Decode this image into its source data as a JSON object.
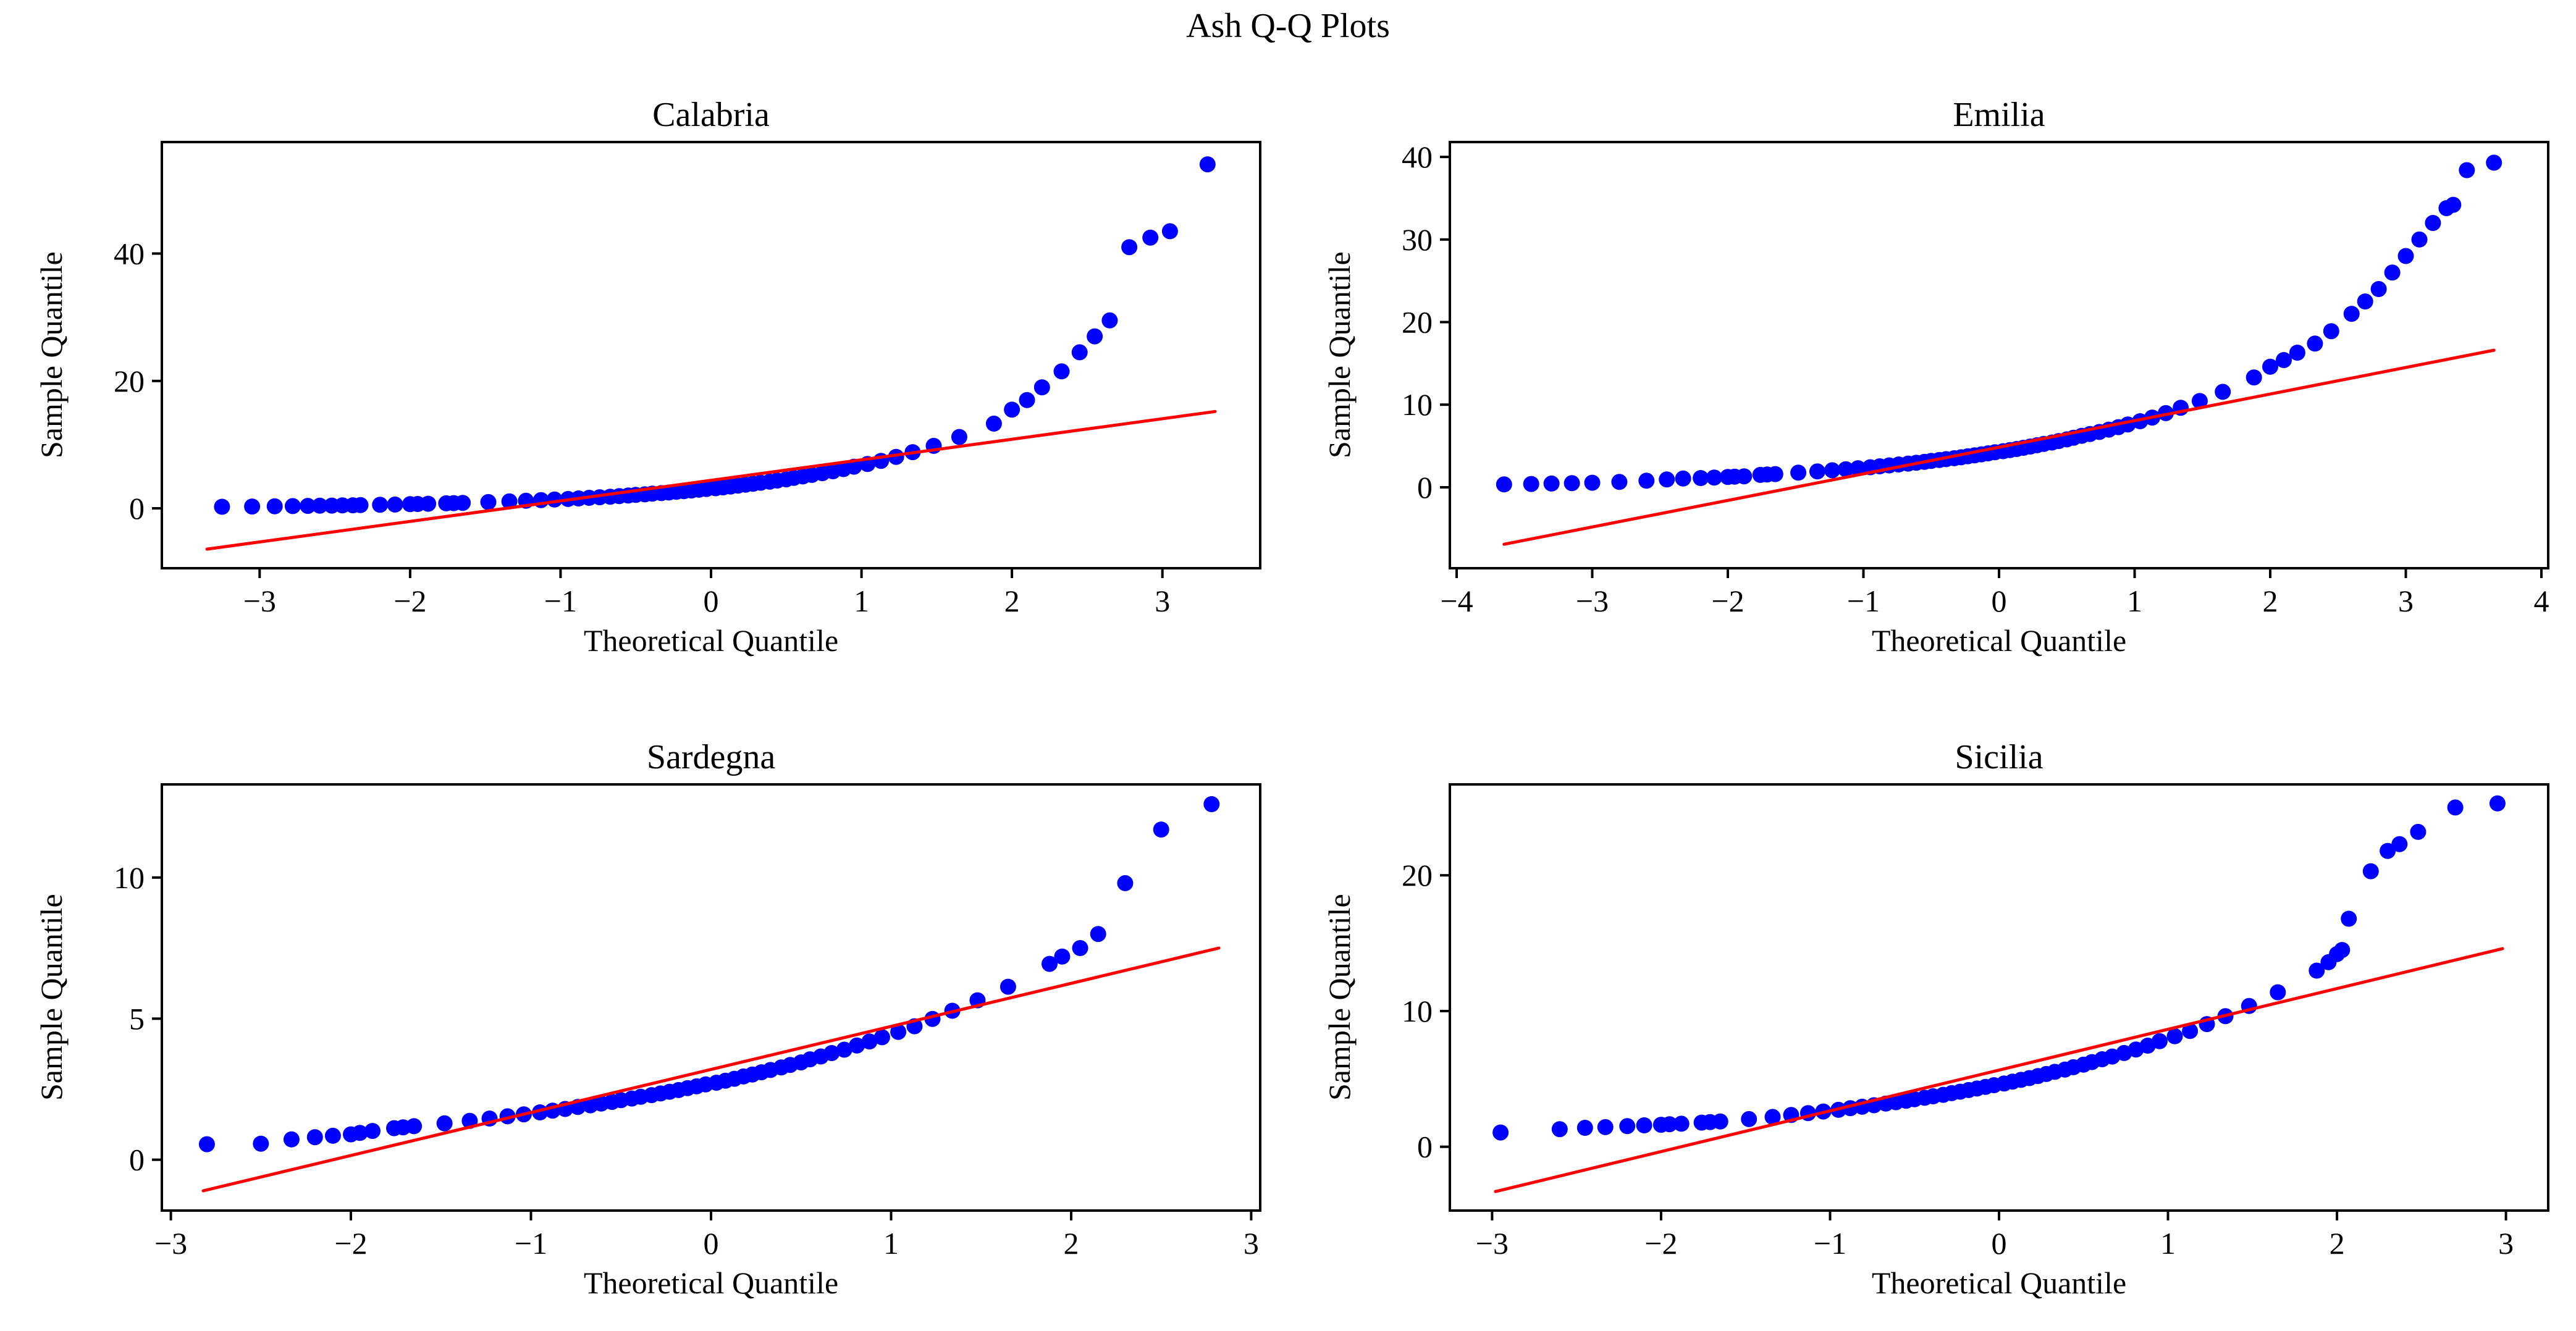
{
  "figure": {
    "title": "Ash Q-Q Plots",
    "background_color": "#ffffff",
    "point_color": "#0000ff",
    "line_color": "#ff0000",
    "axis_color": "#000000",
    "grid": false,
    "legend": "none"
  },
  "chart_data": [
    {
      "type": "scatter",
      "subtype": "qq-plot",
      "title": "Calabria",
      "xlabel": "Theoretical Quantile",
      "ylabel": "Sample Quantile",
      "xlim": [
        -3.65,
        3.65
      ],
      "ylim": [
        -9.4,
        57.5
      ],
      "xticks": [
        -3,
        -2,
        -1,
        0,
        1,
        2,
        3
      ],
      "yticks": [
        0,
        20,
        40
      ],
      "fit_line": [
        [
          -3.35,
          -6.4
        ],
        [
          3.35,
          15.2
        ]
      ],
      "points": [
        [
          -3.25,
          0.25
        ],
        [
          -3.05,
          0.29
        ],
        [
          -2.9,
          0.32
        ],
        [
          -2.78,
          0.35
        ],
        [
          -2.68,
          0.38
        ],
        [
          -2.6,
          0.41
        ],
        [
          -2.52,
          0.43
        ],
        [
          -2.45,
          0.46
        ],
        [
          -2.38,
          0.48
        ],
        [
          -2.33,
          0.51
        ],
        [
          -2.2,
          0.56
        ],
        [
          -2.1,
          0.6
        ],
        [
          -2.0,
          0.65
        ],
        [
          -1.95,
          0.68
        ],
        [
          -1.88,
          0.72
        ],
        [
          -1.76,
          0.79
        ],
        [
          -1.71,
          0.82
        ],
        [
          -1.65,
          0.86
        ],
        [
          -1.48,
          0.98
        ],
        [
          -1.34,
          1.09
        ],
        [
          -1.23,
          1.19
        ],
        [
          -1.13,
          1.29
        ],
        [
          -1.04,
          1.38
        ],
        [
          -0.95,
          1.47
        ],
        [
          -0.88,
          1.56
        ],
        [
          -0.81,
          1.65
        ],
        [
          -0.74,
          1.74
        ],
        [
          -0.67,
          1.83
        ],
        [
          -0.61,
          1.92
        ],
        [
          -0.55,
          2.01
        ],
        [
          -0.5,
          2.11
        ],
        [
          -0.44,
          2.2
        ],
        [
          -0.39,
          2.3
        ],
        [
          -0.33,
          2.39
        ],
        [
          -0.28,
          2.49
        ],
        [
          -0.23,
          2.59
        ],
        [
          -0.18,
          2.7
        ],
        [
          -0.13,
          2.81
        ],
        [
          -0.08,
          2.92
        ],
        [
          -0.03,
          3.04
        ],
        [
          0.03,
          3.16
        ],
        [
          0.08,
          3.29
        ],
        [
          0.13,
          3.42
        ],
        [
          0.18,
          3.56
        ],
        [
          0.23,
          3.71
        ],
        [
          0.28,
          3.86
        ],
        [
          0.33,
          4.02
        ],
        [
          0.39,
          4.18
        ],
        [
          0.44,
          4.37
        ],
        [
          0.5,
          4.55
        ],
        [
          0.55,
          4.78
        ],
        [
          0.61,
          5.01
        ],
        [
          0.67,
          5.25
        ],
        [
          0.74,
          5.52
        ],
        [
          0.81,
          5.82
        ],
        [
          0.88,
          6.16
        ],
        [
          0.95,
          6.54
        ],
        [
          1.04,
          6.96
        ],
        [
          1.13,
          7.45
        ],
        [
          1.23,
          8.08
        ],
        [
          1.34,
          8.82
        ],
        [
          1.48,
          9.81
        ],
        [
          1.65,
          11.2
        ],
        [
          1.88,
          13.3
        ],
        [
          2.0,
          15.5
        ],
        [
          2.1,
          17.0
        ],
        [
          2.2,
          19.0
        ],
        [
          2.33,
          21.5
        ],
        [
          2.45,
          24.5
        ],
        [
          2.55,
          27.0
        ],
        [
          2.65,
          29.5
        ],
        [
          2.78,
          41.0
        ],
        [
          2.92,
          42.5
        ],
        [
          3.05,
          43.5
        ],
        [
          3.3,
          54.0
        ]
      ]
    },
    {
      "type": "scatter",
      "subtype": "qq-plot",
      "title": "Emilia",
      "xlabel": "Theoretical Quantile",
      "ylabel": "Sample Quantile",
      "xlim": [
        -4.05,
        4.05
      ],
      "ylim": [
        -9.8,
        41.8
      ],
      "xticks": [
        -4,
        -3,
        -2,
        -1,
        0,
        1,
        2,
        3,
        4
      ],
      "yticks": [
        0,
        10,
        20,
        30,
        40
      ],
      "fit_line": [
        [
          -3.65,
          -6.9
        ],
        [
          3.65,
          16.6
        ]
      ],
      "points": [
        [
          -3.65,
          0.35
        ],
        [
          -3.45,
          0.4
        ],
        [
          -3.3,
          0.45
        ],
        [
          -3.15,
          0.5
        ],
        [
          -3.0,
          0.55
        ],
        [
          -2.8,
          0.65
        ],
        [
          -2.6,
          0.8
        ],
        [
          -2.45,
          0.95
        ],
        [
          -2.33,
          1.06
        ],
        [
          -2.2,
          1.12
        ],
        [
          -2.1,
          1.18
        ],
        [
          -2.0,
          1.25
        ],
        [
          -1.95,
          1.28
        ],
        [
          -1.88,
          1.33
        ],
        [
          -1.76,
          1.5
        ],
        [
          -1.71,
          1.55
        ],
        [
          -1.65,
          1.6
        ],
        [
          -1.48,
          1.77
        ],
        [
          -1.34,
          1.92
        ],
        [
          -1.23,
          2.06
        ],
        [
          -1.13,
          2.19
        ],
        [
          -1.04,
          2.31
        ],
        [
          -0.95,
          2.43
        ],
        [
          -0.88,
          2.54
        ],
        [
          -0.81,
          2.65
        ],
        [
          -0.74,
          2.76
        ],
        [
          -0.67,
          2.87
        ],
        [
          -0.61,
          2.97
        ],
        [
          -0.55,
          3.08
        ],
        [
          -0.5,
          3.19
        ],
        [
          -0.44,
          3.3
        ],
        [
          -0.39,
          3.41
        ],
        [
          -0.33,
          3.52
        ],
        [
          -0.28,
          3.63
        ],
        [
          -0.23,
          3.75
        ],
        [
          -0.18,
          3.87
        ],
        [
          -0.13,
          3.99
        ],
        [
          -0.08,
          4.11
        ],
        [
          -0.03,
          4.24
        ],
        [
          0.03,
          4.37
        ],
        [
          0.08,
          4.5
        ],
        [
          0.13,
          4.63
        ],
        [
          0.18,
          4.78
        ],
        [
          0.23,
          4.93
        ],
        [
          0.28,
          5.09
        ],
        [
          0.33,
          5.25
        ],
        [
          0.39,
          5.42
        ],
        [
          0.44,
          5.6
        ],
        [
          0.5,
          5.8
        ],
        [
          0.55,
          6.0
        ],
        [
          0.61,
          6.23
        ],
        [
          0.67,
          6.44
        ],
        [
          0.74,
          6.7
        ],
        [
          0.81,
          6.98
        ],
        [
          0.88,
          7.28
        ],
        [
          0.95,
          7.61
        ],
        [
          1.04,
          8.0
        ],
        [
          1.13,
          8.44
        ],
        [
          1.23,
          8.98
        ],
        [
          1.34,
          9.63
        ],
        [
          1.48,
          10.45
        ],
        [
          1.65,
          11.56
        ],
        [
          1.88,
          13.3
        ],
        [
          2.0,
          14.6
        ],
        [
          2.1,
          15.4
        ],
        [
          2.2,
          16.3
        ],
        [
          2.33,
          17.4
        ],
        [
          2.45,
          18.9
        ],
        [
          2.6,
          21.0
        ],
        [
          2.7,
          22.5
        ],
        [
          2.8,
          24.0
        ],
        [
          2.9,
          26.0
        ],
        [
          3.0,
          28.0
        ],
        [
          3.1,
          30.0
        ],
        [
          3.2,
          32.0
        ],
        [
          3.3,
          33.8
        ],
        [
          3.35,
          34.2
        ],
        [
          3.45,
          38.4
        ],
        [
          3.65,
          39.3
        ]
      ]
    },
    {
      "type": "scatter",
      "subtype": "qq-plot",
      "title": "Sardegna",
      "xlabel": "Theoretical Quantile",
      "ylabel": "Sample Quantile",
      "xlim": [
        -3.05,
        3.05
      ],
      "ylim": [
        -1.8,
        13.3
      ],
      "xticks": [
        -3,
        -2,
        -1,
        0,
        1,
        2,
        3
      ],
      "yticks": [
        0,
        5,
        10
      ],
      "fit_line": [
        [
          -2.82,
          -1.1
        ],
        [
          2.82,
          7.5
        ]
      ],
      "points": [
        [
          -2.8,
          0.55
        ],
        [
          -2.5,
          0.57
        ],
        [
          -2.33,
          0.72
        ],
        [
          -2.2,
          0.8
        ],
        [
          -2.1,
          0.85
        ],
        [
          -2.0,
          0.9
        ],
        [
          -1.95,
          0.95
        ],
        [
          -1.88,
          1.02
        ],
        [
          -1.76,
          1.12
        ],
        [
          -1.71,
          1.15
        ],
        [
          -1.65,
          1.19
        ],
        [
          -1.48,
          1.29
        ],
        [
          -1.34,
          1.38
        ],
        [
          -1.23,
          1.46
        ],
        [
          -1.13,
          1.54
        ],
        [
          -1.04,
          1.61
        ],
        [
          -0.95,
          1.68
        ],
        [
          -0.88,
          1.74
        ],
        [
          -0.81,
          1.8
        ],
        [
          -0.74,
          1.87
        ],
        [
          -0.67,
          1.93
        ],
        [
          -0.61,
          1.99
        ],
        [
          -0.55,
          2.05
        ],
        [
          -0.5,
          2.11
        ],
        [
          -0.44,
          2.17
        ],
        [
          -0.39,
          2.23
        ],
        [
          -0.33,
          2.29
        ],
        [
          -0.28,
          2.35
        ],
        [
          -0.23,
          2.41
        ],
        [
          -0.18,
          2.47
        ],
        [
          -0.13,
          2.54
        ],
        [
          -0.08,
          2.6
        ],
        [
          -0.03,
          2.67
        ],
        [
          0.03,
          2.73
        ],
        [
          0.08,
          2.8
        ],
        [
          0.13,
          2.87
        ],
        [
          0.18,
          2.95
        ],
        [
          0.23,
          3.02
        ],
        [
          0.28,
          3.1
        ],
        [
          0.33,
          3.18
        ],
        [
          0.39,
          3.27
        ],
        [
          0.44,
          3.36
        ],
        [
          0.5,
          3.45
        ],
        [
          0.55,
          3.56
        ],
        [
          0.61,
          3.66
        ],
        [
          0.67,
          3.78
        ],
        [
          0.74,
          3.9
        ],
        [
          0.81,
          4.05
        ],
        [
          0.88,
          4.19
        ],
        [
          0.95,
          4.34
        ],
        [
          1.04,
          4.53
        ],
        [
          1.13,
          4.73
        ],
        [
          1.23,
          4.99
        ],
        [
          1.34,
          5.28
        ],
        [
          1.48,
          5.65
        ],
        [
          1.65,
          6.13
        ],
        [
          1.88,
          6.94
        ],
        [
          1.95,
          7.2
        ],
        [
          2.05,
          7.5
        ],
        [
          2.15,
          8.0
        ],
        [
          2.3,
          9.8
        ],
        [
          2.5,
          11.7
        ],
        [
          2.78,
          12.6
        ]
      ]
    },
    {
      "type": "scatter",
      "subtype": "qq-plot",
      "title": "Sicilia",
      "xlabel": "Theoretical Quantile",
      "ylabel": "Sample Quantile",
      "xlim": [
        -3.25,
        3.25
      ],
      "ylim": [
        -4.7,
        26.7
      ],
      "xticks": [
        -3,
        -2,
        -1,
        0,
        1,
        2,
        3
      ],
      "yticks": [
        0,
        10,
        20
      ],
      "fit_line": [
        [
          -2.98,
          -3.3
        ],
        [
          2.98,
          14.6
        ]
      ],
      "points": [
        [
          -2.95,
          1.05
        ],
        [
          -2.6,
          1.3
        ],
        [
          -2.45,
          1.4
        ],
        [
          -2.33,
          1.45
        ],
        [
          -2.2,
          1.52
        ],
        [
          -2.1,
          1.58
        ],
        [
          -2.0,
          1.62
        ],
        [
          -1.95,
          1.66
        ],
        [
          -1.88,
          1.7
        ],
        [
          -1.76,
          1.78
        ],
        [
          -1.71,
          1.82
        ],
        [
          -1.65,
          1.86
        ],
        [
          -1.48,
          2.04
        ],
        [
          -1.34,
          2.2
        ],
        [
          -1.23,
          2.34
        ],
        [
          -1.13,
          2.48
        ],
        [
          -1.04,
          2.6
        ],
        [
          -0.95,
          2.72
        ],
        [
          -0.88,
          2.84
        ],
        [
          -0.81,
          2.95
        ],
        [
          -0.74,
          3.06
        ],
        [
          -0.67,
          3.18
        ],
        [
          -0.61,
          3.28
        ],
        [
          -0.55,
          3.39
        ],
        [
          -0.5,
          3.5
        ],
        [
          -0.44,
          3.61
        ],
        [
          -0.39,
          3.72
        ],
        [
          -0.33,
          3.83
        ],
        [
          -0.28,
          3.95
        ],
        [
          -0.23,
          4.06
        ],
        [
          -0.18,
          4.18
        ],
        [
          -0.13,
          4.29
        ],
        [
          -0.08,
          4.41
        ],
        [
          -0.03,
          4.54
        ],
        [
          0.03,
          4.66
        ],
        [
          0.08,
          4.8
        ],
        [
          0.13,
          4.93
        ],
        [
          0.18,
          5.06
        ],
        [
          0.23,
          5.21
        ],
        [
          0.28,
          5.36
        ],
        [
          0.33,
          5.52
        ],
        [
          0.39,
          5.69
        ],
        [
          0.44,
          5.86
        ],
        [
          0.5,
          6.05
        ],
        [
          0.55,
          6.24
        ],
        [
          0.61,
          6.45
        ],
        [
          0.67,
          6.65
        ],
        [
          0.74,
          6.91
        ],
        [
          0.81,
          7.17
        ],
        [
          0.88,
          7.45
        ],
        [
          0.95,
          7.78
        ],
        [
          1.04,
          8.14
        ],
        [
          1.13,
          8.53
        ],
        [
          1.23,
          9.04
        ],
        [
          1.34,
          9.62
        ],
        [
          1.48,
          10.37
        ],
        [
          1.65,
          11.38
        ],
        [
          1.88,
          12.98
        ],
        [
          1.95,
          13.6
        ],
        [
          2.0,
          14.2
        ],
        [
          2.03,
          14.5
        ],
        [
          2.07,
          16.8
        ],
        [
          2.2,
          20.3
        ],
        [
          2.3,
          21.8
        ],
        [
          2.37,
          22.3
        ],
        [
          2.48,
          23.2
        ],
        [
          2.7,
          25.0
        ],
        [
          2.95,
          25.3
        ]
      ]
    }
  ]
}
